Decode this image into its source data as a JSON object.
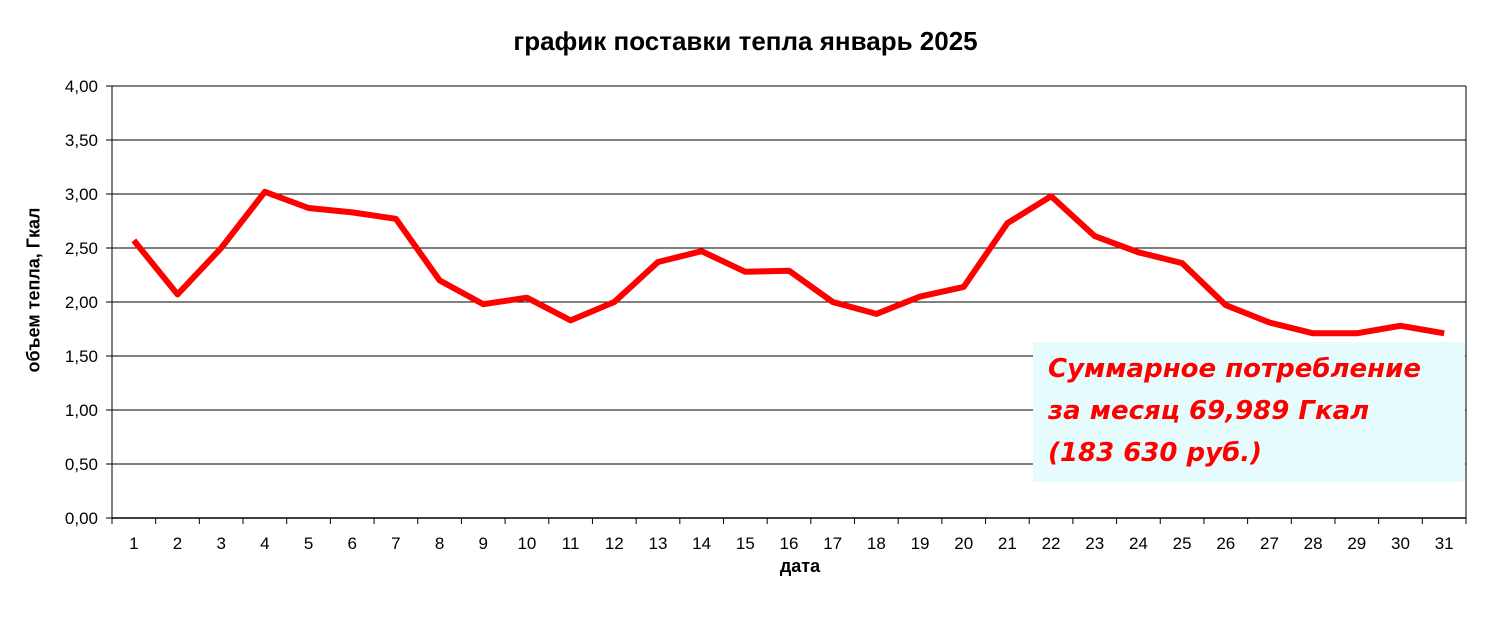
{
  "chart_data": {
    "type": "line",
    "title": "график поставки тепла январь 2025",
    "xlabel": "дата",
    "ylabel": "объем тепла, Гкал",
    "categories": [
      "1",
      "2",
      "3",
      "4",
      "5",
      "6",
      "7",
      "8",
      "9",
      "10",
      "11",
      "12",
      "13",
      "14",
      "15",
      "16",
      "17",
      "18",
      "19",
      "20",
      "21",
      "22",
      "23",
      "24",
      "25",
      "26",
      "27",
      "28",
      "29",
      "30",
      "31"
    ],
    "y_tick_labels": [
      "0,00",
      "0,50",
      "1,00",
      "1,50",
      "2,00",
      "2,50",
      "3,00",
      "3,50",
      "4,00"
    ],
    "ylim": [
      0,
      4
    ],
    "grid": true,
    "legend": "none",
    "series": [
      {
        "color": "#ff0000",
        "values": [
          2.57,
          2.07,
          2.5,
          3.02,
          2.87,
          2.83,
          2.77,
          2.2,
          1.98,
          2.04,
          1.83,
          2.0,
          2.37,
          2.47,
          2.28,
          2.29,
          2.0,
          1.89,
          2.05,
          2.14,
          2.73,
          2.98,
          2.61,
          2.46,
          2.36,
          1.97,
          1.81,
          1.71,
          1.71,
          1.78,
          1.71
        ]
      }
    ],
    "annotation": {
      "lines": [
        "Суммарное  потребление",
        "за месяц 69,989 Гкал",
        "(183 630 руб.)"
      ],
      "text_color": "#ff0000",
      "background_color": "#e6fcfc"
    }
  }
}
